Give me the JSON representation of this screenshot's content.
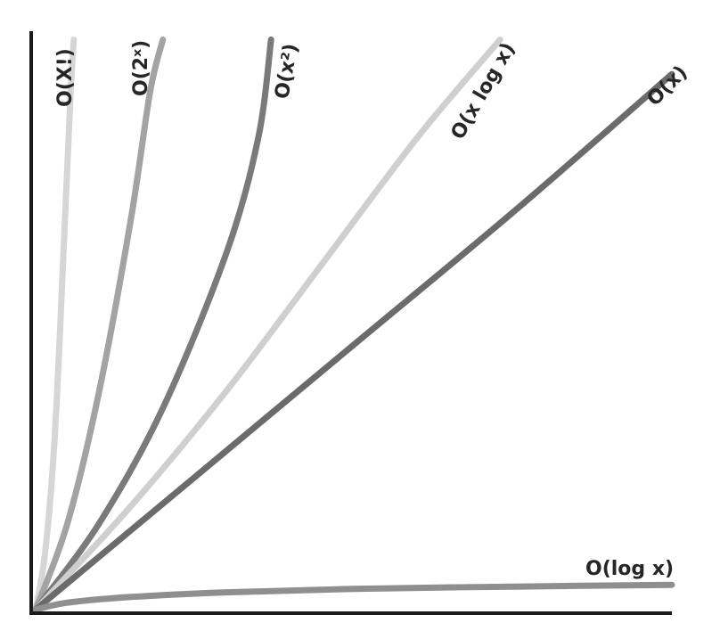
{
  "chart_data": {
    "type": "line",
    "title": "",
    "xlabel": "",
    "ylabel": "",
    "grid": false,
    "xlim": [
      0,
      10
    ],
    "ylim": [
      0,
      10
    ],
    "series": [
      {
        "key": "fact",
        "name": "O(X!)",
        "color": "#d6d6d6",
        "x": [
          0,
          0.15,
          0.3,
          0.45,
          0.55,
          0.6
        ],
        "y": [
          0,
          1.0,
          3.0,
          6.5,
          9.0,
          9.9
        ]
      },
      {
        "key": "exp",
        "name": "O(2ˣ)",
        "color": "#a3a3a3",
        "x": [
          0,
          0.5,
          1.0,
          1.5,
          1.8,
          2.0
        ],
        "y": [
          0,
          1.5,
          3.8,
          6.8,
          9.0,
          9.9
        ]
      },
      {
        "key": "quad",
        "name": "O(x²)",
        "color": "#7a7a7a",
        "x": [
          0,
          1.0,
          2.0,
          3.0,
          3.5,
          3.7
        ],
        "y": [
          0,
          1.5,
          3.5,
          6.2,
          8.2,
          9.9
        ]
      },
      {
        "key": "nlogn",
        "name": "O(x log x)",
        "color": "#cfcfcf",
        "x": [
          0,
          1.5,
          3.0,
          4.5,
          6.0,
          7.3
        ],
        "y": [
          0,
          1.8,
          3.8,
          6.0,
          8.2,
          9.9
        ]
      },
      {
        "key": "linear",
        "name": "O(x)",
        "color": "#6b6b6b",
        "x": [
          0,
          2.5,
          5.0,
          7.5,
          10.0
        ],
        "y": [
          0,
          2.3,
          4.6,
          6.9,
          9.3
        ]
      },
      {
        "key": "log",
        "name": "O(log x)",
        "color": "#8f8f8f",
        "x": [
          0,
          0.5,
          1.5,
          3.0,
          5.0,
          7.5,
          10.0
        ],
        "y": [
          0,
          0.12,
          0.22,
          0.3,
          0.36,
          0.4,
          0.43
        ]
      }
    ]
  }
}
